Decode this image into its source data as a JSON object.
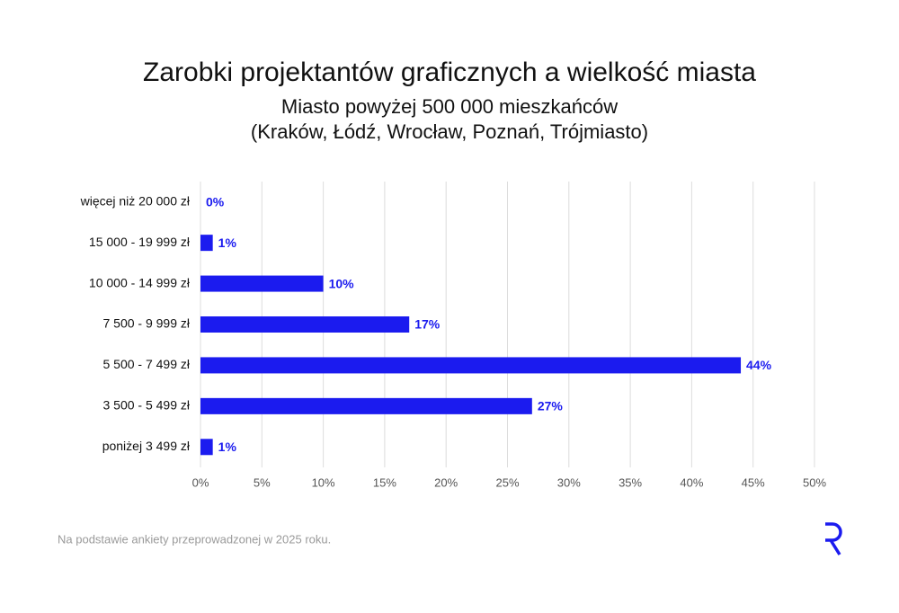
{
  "chart_data": {
    "type": "bar",
    "orientation": "horizontal",
    "title": "Zarobki projektantów graficznych a wielkość miasta",
    "subtitle": [
      "Miasto powyżej 500 000 mieszkańców",
      "(Kraków, Łódź, Wrocław, Poznań, Trójmiasto)"
    ],
    "categories": [
      "więcej niż 20 000 zł",
      "15 000 - 19 999 zł",
      "10 000 - 14 999 zł",
      "7 500 - 9 999 zł",
      "5 500 - 7 499 zł",
      "3 500 - 5 499 zł",
      "poniżej 3 499 zł"
    ],
    "values": [
      0,
      1,
      10,
      17,
      44,
      27,
      1
    ],
    "value_labels": [
      "0%",
      "1%",
      "10%",
      "17%",
      "44%",
      "27%",
      "1%"
    ],
    "color": "#1b1bef",
    "xlim": [
      0,
      50
    ],
    "xticks": [
      {
        "value": 0,
        "label": "0%"
      },
      {
        "value": 5,
        "label": "5%"
      },
      {
        "value": 10,
        "label": "10%"
      },
      {
        "value": 15,
        "label": "15%"
      },
      {
        "value": 20,
        "label": "20%"
      },
      {
        "value": 25,
        "label": "25%"
      },
      {
        "value": 30,
        "label": "30%"
      },
      {
        "value": 35,
        "label": "35%"
      },
      {
        "value": 40,
        "label": "40%"
      },
      {
        "value": 45,
        "label": "45%"
      },
      {
        "value": 50,
        "label": "50%"
      }
    ],
    "grid": true,
    "note": "Na podstawie ankiety przeprowadzonej w 2025 roku."
  }
}
